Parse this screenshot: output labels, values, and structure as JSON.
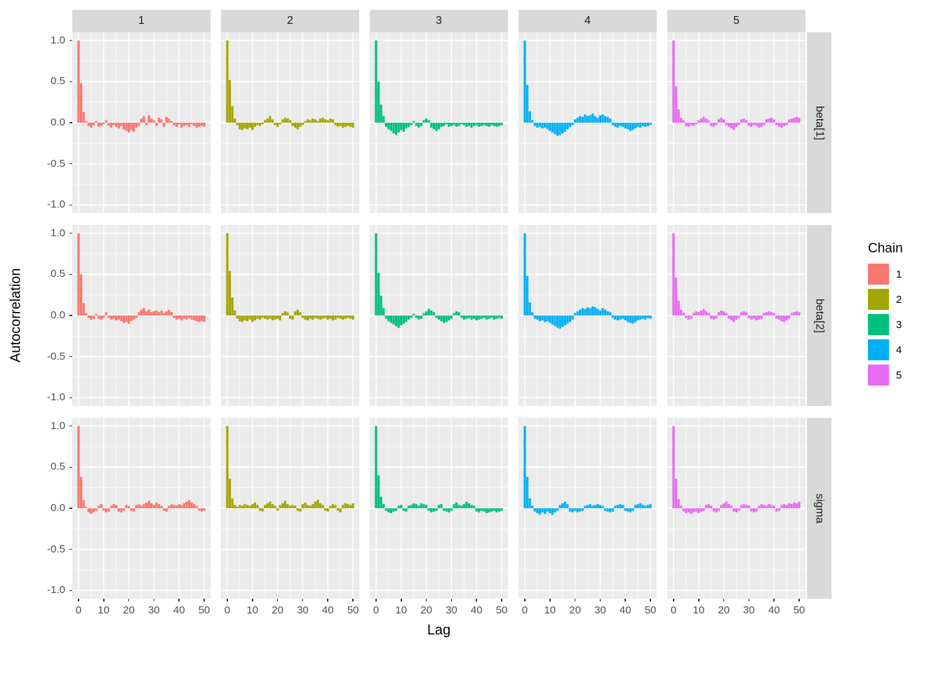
{
  "figure": {
    "background": "#FFFFFF",
    "panel_background": "#EBEBEB",
    "strip_background": "#D9D9D9",
    "grid_color": "#FFFFFF",
    "tick_label_color": "#4D4D4D",
    "strip_text_color": "#1A1A1A",
    "axis_title_color": "#000000"
  },
  "chart_data": {
    "type": "bar",
    "title": "",
    "subtitle": "",
    "xlabel": "Lag",
    "ylabel": "Autocorrelation",
    "grid": "on",
    "xlim": [
      -2.5,
      52.5
    ],
    "ylim": [
      -1.1,
      1.1
    ],
    "lag_min": 0,
    "lag_max": 50,
    "x_ticks": [
      {
        "v": 0,
        "label": "0"
      },
      {
        "v": 10,
        "label": "10"
      },
      {
        "v": 20,
        "label": "20"
      },
      {
        "v": 30,
        "label": "30"
      },
      {
        "v": 40,
        "label": "40"
      },
      {
        "v": 50,
        "label": "50"
      }
    ],
    "y_ticks": [
      {
        "v": 1.0,
        "label": "1.0"
      },
      {
        "v": 0.5,
        "label": "0.5"
      },
      {
        "v": 0.0,
        "label": "0.0"
      },
      {
        "v": -0.5,
        "label": "-0.5"
      },
      {
        "v": -1.0,
        "label": "-1.0"
      }
    ],
    "x_minor": [
      5,
      15,
      25,
      35,
      45
    ],
    "y_minor": [
      -0.75,
      -0.25,
      0.25,
      0.75
    ],
    "facets": {
      "rows": [
        "beta[1]",
        "beta[2]",
        "sigma"
      ],
      "cols": [
        "1",
        "2",
        "3",
        "4",
        "5"
      ]
    },
    "legend": {
      "title": "Chain",
      "position": "right",
      "entries": [
        {
          "label": "1",
          "color": "#F8766D"
        },
        {
          "label": "2",
          "color": "#A3A500"
        },
        {
          "label": "3",
          "color": "#00BF7D"
        },
        {
          "label": "4",
          "color": "#00B0F6"
        },
        {
          "label": "5",
          "color": "#E76BF3"
        }
      ]
    },
    "panels": [
      {
        "row": "beta[1]",
        "col": "1",
        "chain": "1",
        "acf": [
          1.0,
          0.48,
          0.13,
          0.02,
          -0.04,
          -0.06,
          -0.03,
          0.02,
          -0.05,
          -0.04,
          -0.02,
          0.03,
          -0.04,
          -0.06,
          -0.03,
          -0.05,
          -0.07,
          -0.04,
          -0.08,
          -0.1,
          -0.12,
          -0.09,
          -0.11,
          -0.06,
          -0.04,
          0.05,
          0.08,
          -0.03,
          0.09,
          0.05,
          0.03,
          -0.04,
          0.06,
          0.04,
          -0.05,
          0.07,
          0.05,
          0.02,
          -0.03,
          -0.05,
          -0.02,
          -0.06,
          -0.04,
          -0.03,
          -0.05,
          -0.02,
          -0.04,
          -0.06,
          -0.05,
          -0.04,
          -0.05
        ]
      },
      {
        "row": "beta[1]",
        "col": "2",
        "chain": "2",
        "acf": [
          1.0,
          0.52,
          0.2,
          0.05,
          -0.03,
          -0.08,
          -0.09,
          -0.07,
          -0.08,
          -0.06,
          -0.09,
          -0.05,
          -0.03,
          -0.04,
          -0.02,
          0.03,
          0.05,
          0.08,
          0.04,
          -0.03,
          -0.05,
          -0.02,
          0.04,
          0.06,
          0.05,
          0.03,
          -0.04,
          -0.06,
          -0.08,
          -0.05,
          -0.03,
          0.02,
          0.04,
          0.03,
          0.05,
          0.04,
          0.02,
          0.05,
          0.06,
          0.04,
          0.03,
          0.05,
          0.04,
          -0.03,
          -0.05,
          -0.04,
          -0.06,
          -0.05,
          -0.04,
          -0.05,
          -0.06
        ]
      },
      {
        "row": "beta[1]",
        "col": "3",
        "chain": "3",
        "acf": [
          1.0,
          0.5,
          0.22,
          0.08,
          -0.05,
          -0.08,
          -0.1,
          -0.13,
          -0.15,
          -0.12,
          -0.09,
          -0.11,
          -0.07,
          -0.05,
          -0.03,
          0.02,
          -0.04,
          -0.06,
          -0.04,
          0.03,
          0.05,
          0.03,
          -0.06,
          -0.08,
          -0.1,
          -0.08,
          -0.05,
          -0.04,
          -0.02,
          -0.05,
          -0.04,
          -0.03,
          -0.05,
          -0.04,
          -0.02,
          -0.03,
          -0.05,
          -0.04,
          -0.06,
          -0.04,
          -0.03,
          -0.05,
          -0.04,
          -0.03,
          -0.04,
          -0.05,
          -0.03,
          -0.04,
          -0.05,
          -0.04,
          -0.03
        ]
      },
      {
        "row": "beta[1]",
        "col": "4",
        "chain": "4",
        "acf": [
          1.0,
          0.46,
          0.14,
          0.03,
          -0.04,
          -0.06,
          -0.05,
          -0.07,
          -0.06,
          -0.08,
          -0.1,
          -0.12,
          -0.14,
          -0.16,
          -0.15,
          -0.13,
          -0.11,
          -0.08,
          -0.05,
          -0.03,
          0.04,
          0.06,
          0.08,
          0.07,
          0.1,
          0.08,
          0.09,
          0.11,
          0.08,
          0.06,
          0.09,
          0.1,
          0.08,
          0.07,
          0.05,
          -0.03,
          -0.05,
          -0.06,
          -0.04,
          -0.05,
          -0.07,
          -0.08,
          -0.1,
          -0.09,
          -0.07,
          -0.05,
          -0.06,
          -0.04,
          -0.05,
          -0.04,
          -0.03
        ]
      },
      {
        "row": "beta[1]",
        "col": "5",
        "chain": "5",
        "acf": [
          1.0,
          0.44,
          0.16,
          0.06,
          0.03,
          -0.04,
          -0.05,
          -0.03,
          -0.04,
          -0.02,
          0.03,
          0.05,
          0.07,
          0.05,
          0.03,
          -0.04,
          -0.05,
          -0.03,
          0.04,
          0.06,
          0.04,
          -0.03,
          -0.05,
          -0.07,
          -0.09,
          -0.05,
          -0.03,
          0.04,
          0.05,
          0.03,
          -0.04,
          -0.05,
          -0.03,
          -0.04,
          -0.06,
          -0.05,
          -0.03,
          0.04,
          0.05,
          0.06,
          0.04,
          -0.03,
          -0.05,
          -0.06,
          -0.04,
          -0.03,
          0.04,
          0.05,
          0.06,
          0.07,
          0.06
        ]
      },
      {
        "row": "beta[2]",
        "col": "1",
        "chain": "1",
        "acf": [
          1.0,
          0.5,
          0.15,
          0.03,
          -0.03,
          -0.05,
          -0.04,
          0.02,
          -0.04,
          -0.05,
          -0.03,
          0.04,
          -0.03,
          -0.05,
          -0.04,
          -0.06,
          -0.05,
          -0.07,
          -0.09,
          -0.08,
          -0.1,
          -0.07,
          -0.05,
          -0.03,
          0.04,
          0.07,
          0.09,
          0.05,
          0.07,
          0.04,
          0.05,
          0.06,
          0.04,
          0.06,
          0.03,
          0.05,
          0.07,
          0.04,
          -0.03,
          -0.05,
          -0.04,
          -0.06,
          -0.04,
          -0.05,
          -0.03,
          -0.05,
          -0.06,
          -0.07,
          -0.08,
          -0.07,
          -0.08
        ]
      },
      {
        "row": "beta[2]",
        "col": "2",
        "chain": "2",
        "acf": [
          1.0,
          0.54,
          0.22,
          0.06,
          -0.04,
          -0.07,
          -0.08,
          -0.06,
          -0.07,
          -0.05,
          -0.08,
          -0.06,
          -0.04,
          -0.05,
          -0.03,
          -0.04,
          -0.05,
          -0.04,
          -0.06,
          -0.05,
          -0.04,
          -0.06,
          0.03,
          0.05,
          0.04,
          -0.04,
          -0.05,
          0.05,
          0.07,
          0.04,
          -0.03,
          -0.05,
          -0.06,
          -0.04,
          -0.05,
          -0.03,
          -0.04,
          -0.05,
          -0.04,
          -0.03,
          -0.05,
          -0.04,
          -0.06,
          -0.05,
          -0.03,
          -0.04,
          -0.05,
          -0.04,
          -0.03,
          -0.04,
          -0.05
        ]
      },
      {
        "row": "beta[2]",
        "col": "3",
        "chain": "3",
        "acf": [
          1.0,
          0.52,
          0.24,
          0.09,
          -0.04,
          -0.07,
          -0.09,
          -0.11,
          -0.13,
          -0.15,
          -0.12,
          -0.1,
          -0.08,
          -0.05,
          -0.03,
          0.02,
          -0.03,
          -0.05,
          -0.04,
          0.03,
          0.05,
          0.08,
          0.06,
          0.04,
          -0.03,
          -0.05,
          -0.07,
          -0.09,
          -0.08,
          -0.06,
          -0.04,
          0.03,
          0.05,
          0.04,
          -0.03,
          -0.05,
          -0.04,
          -0.03,
          -0.05,
          -0.04,
          -0.06,
          -0.05,
          -0.04,
          -0.03,
          -0.05,
          -0.04,
          -0.03,
          -0.05,
          -0.04,
          -0.03,
          -0.04
        ]
      },
      {
        "row": "beta[2]",
        "col": "4",
        "chain": "4",
        "acf": [
          1.0,
          0.48,
          0.16,
          0.04,
          -0.04,
          -0.05,
          -0.07,
          -0.06,
          -0.08,
          -0.07,
          -0.09,
          -0.11,
          -0.13,
          -0.15,
          -0.16,
          -0.14,
          -0.12,
          -0.1,
          -0.08,
          -0.05,
          0.03,
          0.05,
          0.07,
          0.09,
          0.08,
          0.1,
          0.09,
          0.11,
          0.1,
          0.08,
          0.06,
          0.09,
          0.07,
          0.05,
          0.04,
          -0.03,
          -0.05,
          -0.06,
          -0.05,
          -0.04,
          -0.06,
          -0.08,
          -0.09,
          -0.1,
          -0.08,
          -0.06,
          -0.05,
          -0.04,
          -0.05,
          -0.03,
          -0.04
        ]
      },
      {
        "row": "beta[2]",
        "col": "5",
        "chain": "5",
        "acf": [
          1.0,
          0.46,
          0.18,
          0.07,
          0.03,
          -0.03,
          -0.05,
          -0.04,
          0.03,
          0.05,
          0.04,
          0.06,
          0.08,
          0.05,
          0.03,
          -0.04,
          -0.05,
          -0.04,
          0.04,
          0.06,
          0.05,
          0.03,
          -0.04,
          -0.06,
          -0.08,
          -0.05,
          -0.03,
          0.04,
          0.05,
          0.04,
          -0.03,
          -0.05,
          -0.04,
          -0.06,
          -0.05,
          -0.04,
          0.03,
          0.04,
          0.05,
          0.04,
          0.03,
          -0.04,
          -0.05,
          -0.07,
          -0.08,
          -0.06,
          -0.04,
          0.03,
          0.04,
          0.05,
          0.04
        ]
      },
      {
        "row": "sigma",
        "col": "1",
        "chain": "1",
        "acf": [
          1.0,
          0.38,
          0.1,
          0.02,
          -0.05,
          -0.07,
          -0.05,
          -0.03,
          0.03,
          0.05,
          -0.03,
          -0.05,
          -0.04,
          0.03,
          0.05,
          0.04,
          -0.04,
          -0.05,
          -0.03,
          0.04,
          0.03,
          -0.03,
          -0.04,
          0.04,
          0.05,
          0.03,
          0.05,
          0.07,
          0.09,
          0.06,
          0.04,
          0.07,
          0.05,
          0.03,
          -0.03,
          -0.04,
          0.03,
          0.05,
          0.04,
          0.03,
          0.05,
          0.04,
          0.06,
          0.08,
          0.1,
          0.07,
          0.05,
          0.03,
          -0.03,
          -0.04,
          -0.03
        ]
      },
      {
        "row": "sigma",
        "col": "2",
        "chain": "2",
        "acf": [
          1.0,
          0.36,
          0.12,
          0.04,
          0.02,
          0.04,
          0.03,
          0.05,
          0.04,
          0.03,
          0.05,
          0.07,
          0.04,
          -0.03,
          -0.04,
          0.04,
          0.06,
          0.08,
          0.05,
          0.03,
          -0.03,
          0.04,
          0.06,
          0.09,
          0.05,
          0.03,
          0.04,
          0.03,
          -0.03,
          -0.04,
          0.05,
          0.07,
          0.04,
          0.03,
          0.05,
          0.08,
          0.1,
          0.06,
          0.04,
          -0.03,
          -0.04,
          0.03,
          0.05,
          0.04,
          -0.03,
          -0.05,
          0.04,
          0.06,
          0.05,
          0.04,
          0.06
        ]
      },
      {
        "row": "sigma",
        "col": "3",
        "chain": "3",
        "acf": [
          1.0,
          0.4,
          0.14,
          0.05,
          -0.03,
          -0.05,
          -0.06,
          -0.04,
          -0.03,
          0.03,
          0.04,
          -0.03,
          -0.04,
          0.03,
          0.04,
          0.06,
          0.05,
          0.03,
          0.06,
          0.05,
          0.04,
          -0.03,
          -0.05,
          -0.04,
          -0.03,
          0.04,
          0.05,
          -0.03,
          -0.04,
          -0.05,
          -0.03,
          0.05,
          0.07,
          0.04,
          0.03,
          0.05,
          0.08,
          0.06,
          0.04,
          0.03,
          -0.04,
          -0.05,
          -0.03,
          -0.04,
          -0.06,
          -0.05,
          -0.04,
          -0.03,
          -0.05,
          -0.04,
          -0.03
        ]
      },
      {
        "row": "sigma",
        "col": "4",
        "chain": "4",
        "acf": [
          1.0,
          0.38,
          0.12,
          0.03,
          -0.04,
          -0.06,
          -0.08,
          -0.05,
          -0.07,
          -0.04,
          -0.06,
          -0.08,
          -0.05,
          -0.03,
          0.04,
          0.06,
          0.08,
          0.05,
          -0.04,
          -0.05,
          -0.03,
          -0.05,
          -0.04,
          -0.03,
          0.03,
          0.04,
          0.05,
          0.03,
          0.04,
          0.05,
          0.04,
          0.03,
          -0.03,
          -0.04,
          -0.05,
          -0.04,
          0.03,
          0.04,
          0.05,
          0.04,
          -0.03,
          -0.04,
          -0.05,
          -0.03,
          0.04,
          0.05,
          0.06,
          0.04,
          0.03,
          0.04,
          0.05
        ]
      },
      {
        "row": "sigma",
        "col": "5",
        "chain": "5",
        "acf": [
          1.0,
          0.36,
          0.11,
          0.03,
          -0.04,
          -0.06,
          -0.05,
          -0.07,
          -0.05,
          -0.04,
          -0.06,
          -0.04,
          -0.03,
          0.04,
          0.05,
          0.03,
          -0.04,
          -0.05,
          -0.03,
          0.04,
          0.06,
          0.08,
          0.05,
          0.03,
          -0.04,
          -0.05,
          -0.03,
          0.04,
          0.05,
          0.04,
          0.03,
          -0.04,
          -0.05,
          -0.04,
          0.03,
          0.05,
          0.04,
          0.03,
          0.05,
          0.04,
          0.03,
          -0.04,
          -0.03,
          0.04,
          0.05,
          0.04,
          0.06,
          0.05,
          0.07,
          0.06,
          0.08
        ]
      }
    ]
  }
}
